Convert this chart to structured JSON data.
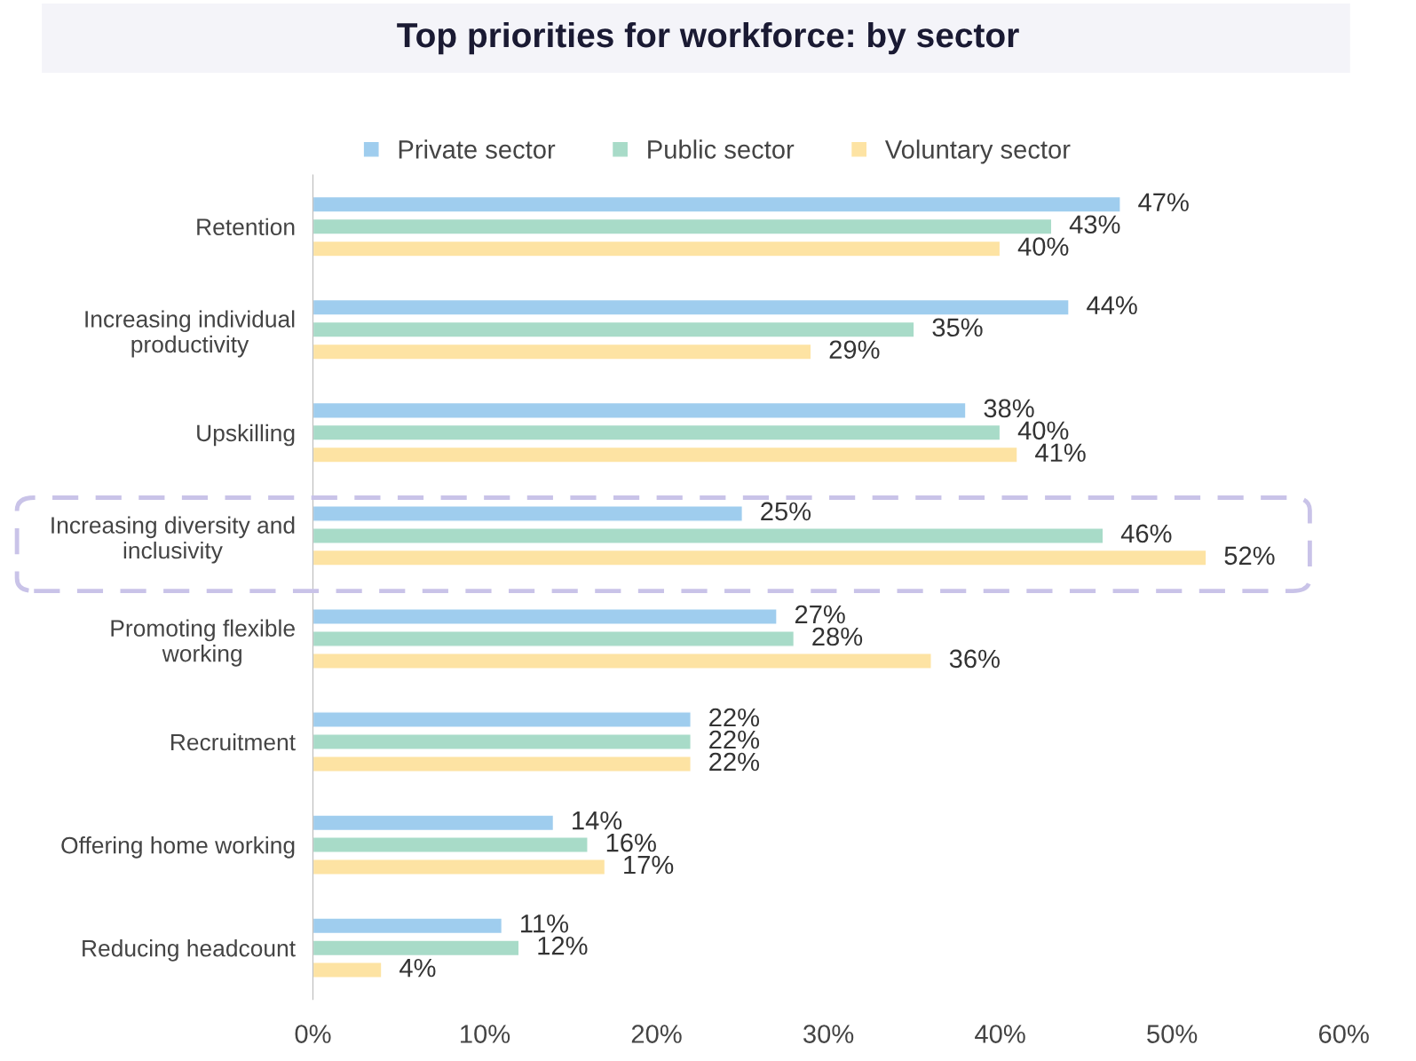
{
  "chart_data": {
    "type": "bar",
    "orientation": "horizontal",
    "title": "Top priorities for workforce: by sector",
    "categories": [
      "Retention",
      "Increasing individual\nproductivity",
      "Upskilling",
      "Increasing diversity and\ninclusivity",
      "Promoting flexible\nworking",
      "Recruitment",
      "Offering home working",
      "Reducing headcount"
    ],
    "series": [
      {
        "name": "Private sector",
        "color": "#9fcdee",
        "values": [
          47,
          44,
          38,
          25,
          27,
          22,
          14,
          11
        ],
        "value_labels": [
          "47%",
          "44%",
          "38%",
          "25%",
          "27%",
          "22%",
          "14%",
          "11%"
        ]
      },
      {
        "name": "Public sector",
        "color": "#a8dbc8",
        "values": [
          43,
          35,
          40,
          46,
          28,
          22,
          16,
          12
        ],
        "value_labels": [
          "43%",
          "35%",
          "40%",
          "46%",
          "28%",
          "22%",
          "16%",
          "12%"
        ]
      },
      {
        "name": "Voluntary sector",
        "color": "#fde3a3",
        "values": [
          40,
          29,
          41,
          52,
          36,
          22,
          17,
          4
        ],
        "value_labels": [
          "40%",
          "29%",
          "41%",
          "52%",
          "36%",
          "22%",
          "17%",
          "4%"
        ]
      }
    ],
    "xlim": [
      0,
      60
    ],
    "xticks": [
      {
        "value": 0,
        "label": "0%"
      },
      {
        "value": 10,
        "label": "10%"
      },
      {
        "value": 20,
        "label": "20%"
      },
      {
        "value": 30,
        "label": "30%"
      },
      {
        "value": 40,
        "label": "40%"
      },
      {
        "value": 50,
        "label": "50%"
      },
      {
        "value": 60,
        "label": "60%"
      }
    ],
    "grid": false,
    "legend": "top"
  }
}
